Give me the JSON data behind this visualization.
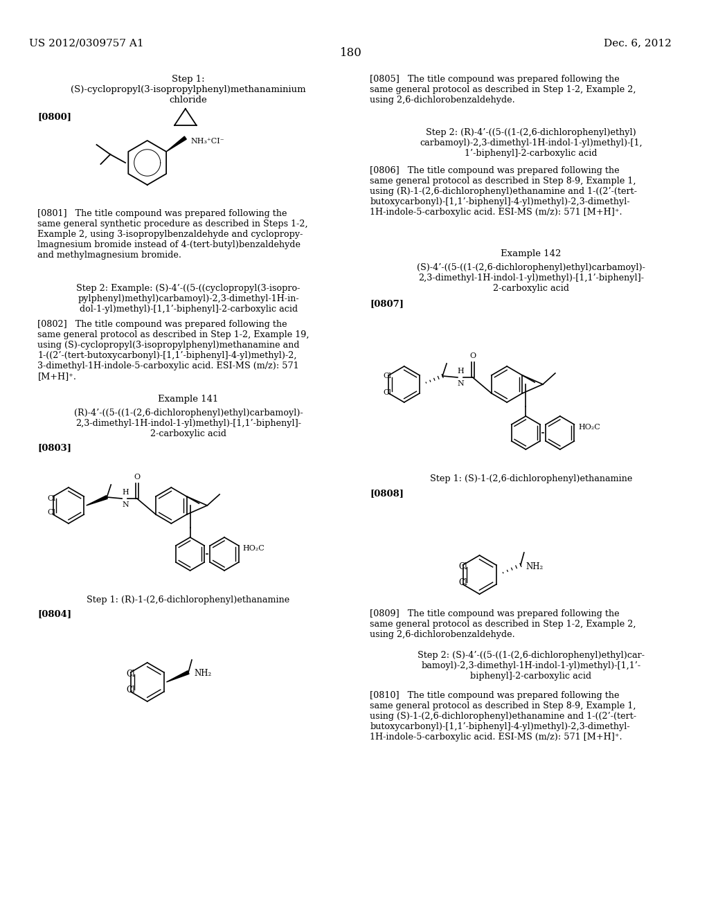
{
  "page_header_left": "US 2012/0309757 A1",
  "page_header_right": "Dec. 6, 2012",
  "page_number": "180",
  "bg": "#ffffff",
  "step1_left": "Step 1:\n(S)-cyclopropyl(3-isopropylphenyl)methanaminium\nchloride",
  "lbl_0800": "[0800]",
  "txt_0801": "[0801]   The title compound was prepared following the\nsame general synthetic procedure as described in Steps 1-2,\nExample 2, using 3-isopropylbenzaldehyde and cyclopropy-\nlmagnesium bromide instead of 4-(tert-butyl)benzaldehyde\nand methylmagnesium bromide.",
  "step2_left": "Step 2: Example: (S)-4’-((5-((cyclopropyl(3-isopro-\npylphenyl)methyl)carbamoyl)-2,3-dimethyl-1H-in-\ndol-1-yl)methyl)-[1,1’-biphenyl]-2-carboxylic acid",
  "txt_0802": "[0802]   The title compound was prepared following the\nsame general protocol as described in Step 1-2, Example 19,\nusing (S)-cyclopropyl(3-isopropylphenyl)methanamine and\n1-((2’-(tert-butoxycarbonyl)-[1,1’-biphenyl]-4-yl)methyl)-2,\n3-dimethyl-1H-indole-5-carboxylic acid. ESI-MS (m/z): 571\n[M+H]⁺.",
  "ex141": "Example 141",
  "ex141name": "(R)-4’-((5-((1-(2,6-dichlorophenyl)ethyl)carbamoyl)-\n2,3-dimethyl-1H-indol-1-yl)methyl)-[1,1’-biphenyl]-\n2-carboxylic acid",
  "lbl_0803": "[0803]",
  "step1_left2": "Step 1: (R)-1-(2,6-dichlorophenyl)ethanamine",
  "lbl_0804": "[0804]",
  "txt_0805": "[0805]   The title compound was prepared following the\nsame general protocol as described in Step 1-2, Example 2,\nusing 2,6-dichlorobenzaldehyde.",
  "step2_right": "Step 2: (R)-4’-((5-((1-(2,6-dichlorophenyl)ethyl)\ncarbamoyl)-2,3-dimethyl-1H-indol-1-yl)methyl)-[1,\n1’-biphenyl]-2-carboxylic acid",
  "txt_0806": "[0806]   The title compound was prepared following the\nsame general protocol as described in Step 8-9, Example 1,\nusing (R)-1-(2,6-dichlorophenyl)ethanamine and 1-((2’-(tert-\nbutoxycarbonyl)-[1,1’-biphenyl]-4-yl)methyl)-2,3-dimethyl-\n1H-indole-5-carboxylic acid. ESI-MS (m/z): 571 [M+H]⁺.",
  "ex142": "Example 142",
  "ex142name": "(S)-4’-((5-((1-(2,6-dichlorophenyl)ethyl)carbamoyl)-\n2,3-dimethyl-1H-indol-1-yl)methyl)-[1,1’-biphenyl]-\n2-carboxylic acid",
  "lbl_0807": "[0807]",
  "step1_right2": "Step 1: (S)-1-(2,6-dichlorophenyl)ethanamine",
  "lbl_0808": "[0808]",
  "txt_0809": "[0809]   The title compound was prepared following the\nsame general protocol as described in Step 1-2, Example 2,\nusing 2,6-dichlorobenzaldehyde.",
  "step2_right2": "Step 2: (S)-4’-((5-((1-(2,6-dichlorophenyl)ethyl)car-\nbamoyl)-2,3-dimethyl-1H-indol-1-yl)methyl)-[1,1’-\nbiphenyl]-2-carboxylic acid",
  "txt_0810": "[0810]   The title compound was prepared following the\nsame general protocol as described in Step 8-9, Example 1,\nusing (S)-1-(2,6-dichlorophenyl)ethanamine and 1-((2’-(tert-\nbutoxycarbonyl)-[1,1’-biphenyl]-4-yl)methyl)-2,3-dimethyl-\n1H-indole-5-carboxylic acid. ESI-MS (m/z): 571 [M+H]⁺."
}
